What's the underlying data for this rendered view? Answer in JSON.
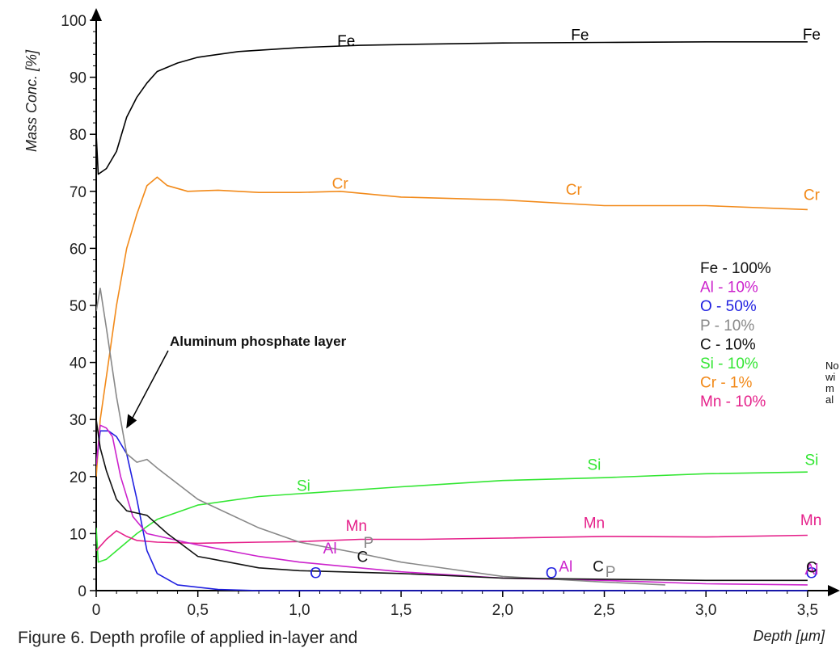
{
  "chart_data": {
    "type": "line",
    "xlabel": "Depth [µm]",
    "ylabel": "Mass Conc. [%]",
    "xlim": [
      0,
      3.6
    ],
    "ylim": [
      0,
      100
    ],
    "x_ticks": [
      "0",
      "0,5",
      "1,0",
      "1,5",
      "2,0",
      "2,5",
      "3,0",
      "3,5"
    ],
    "y_ticks": [
      "0",
      "10",
      "20",
      "30",
      "40",
      "50",
      "60",
      "70",
      "80",
      "90",
      "100"
    ],
    "series": [
      {
        "name": "Fe",
        "color": "#000000",
        "points": [
          [
            0,
            80
          ],
          [
            0.01,
            73
          ],
          [
            0.05,
            74
          ],
          [
            0.1,
            77
          ],
          [
            0.15,
            83
          ],
          [
            0.2,
            86.5
          ],
          [
            0.25,
            89
          ],
          [
            0.3,
            91
          ],
          [
            0.4,
            92.5
          ],
          [
            0.5,
            93.5
          ],
          [
            0.7,
            94.5
          ],
          [
            1.0,
            95.2
          ],
          [
            1.3,
            95.6
          ],
          [
            1.6,
            95.8
          ],
          [
            2.0,
            96
          ],
          [
            2.5,
            96.1
          ],
          [
            3.0,
            96.2
          ],
          [
            3.5,
            96.2
          ]
        ],
        "labels": [
          [
            1.23,
            95.5
          ],
          [
            2.38,
            96.5
          ],
          [
            3.52,
            96.6
          ]
        ]
      },
      {
        "name": "Cr",
        "color": "#f28a1a",
        "points": [
          [
            0,
            20
          ],
          [
            0.02,
            30
          ],
          [
            0.06,
            40
          ],
          [
            0.1,
            50
          ],
          [
            0.15,
            60
          ],
          [
            0.2,
            66
          ],
          [
            0.25,
            71
          ],
          [
            0.3,
            72.5
          ],
          [
            0.35,
            71
          ],
          [
            0.45,
            70
          ],
          [
            0.6,
            70.2
          ],
          [
            0.8,
            69.8
          ],
          [
            1.0,
            69.8
          ],
          [
            1.2,
            70
          ],
          [
            1.5,
            69
          ],
          [
            2.0,
            68.5
          ],
          [
            2.5,
            67.5
          ],
          [
            3.0,
            67.5
          ],
          [
            3.5,
            66.8
          ]
        ],
        "labels": [
          [
            1.2,
            70.5
          ],
          [
            2.35,
            69.4
          ],
          [
            3.52,
            68.5
          ]
        ]
      },
      {
        "name": "Si",
        "color": "#33e633",
        "points": [
          [
            0,
            11
          ],
          [
            0.01,
            5
          ],
          [
            0.05,
            5.5
          ],
          [
            0.1,
            7
          ],
          [
            0.2,
            10
          ],
          [
            0.3,
            12.5
          ],
          [
            0.5,
            15
          ],
          [
            0.8,
            16.5
          ],
          [
            1.0,
            17
          ],
          [
            1.5,
            18.2
          ],
          [
            2.0,
            19.3
          ],
          [
            2.5,
            19.8
          ],
          [
            3.0,
            20.5
          ],
          [
            3.5,
            20.8
          ]
        ],
        "labels": [
          [
            1.02,
            17.5
          ],
          [
            2.45,
            21.2
          ],
          [
            3.52,
            22
          ]
        ]
      },
      {
        "name": "Mn",
        "color": "#e5208a",
        "points": [
          [
            0,
            7
          ],
          [
            0.05,
            9
          ],
          [
            0.1,
            10.5
          ],
          [
            0.15,
            9.5
          ],
          [
            0.2,
            8.8
          ],
          [
            0.3,
            8.5
          ],
          [
            0.5,
            8.3
          ],
          [
            0.8,
            8.5
          ],
          [
            1.0,
            8.6
          ],
          [
            1.3,
            9
          ],
          [
            1.6,
            9
          ],
          [
            2.0,
            9.2
          ],
          [
            2.5,
            9.5
          ],
          [
            3.0,
            9.4
          ],
          [
            3.5,
            9.7
          ]
        ],
        "labels": [
          [
            1.28,
            10.5
          ],
          [
            2.45,
            11
          ]
        ],
        "clipped_labels": [
          [
            3.52,
            11.5
          ]
        ]
      },
      {
        "name": "O",
        "color": "#1f1fe0",
        "points": [
          [
            0,
            22
          ],
          [
            0.02,
            28
          ],
          [
            0.06,
            28
          ],
          [
            0.1,
            27
          ],
          [
            0.15,
            24
          ],
          [
            0.2,
            16
          ],
          [
            0.25,
            7
          ],
          [
            0.3,
            3
          ],
          [
            0.4,
            1
          ],
          [
            0.6,
            0.2
          ],
          [
            0.8,
            0
          ],
          [
            3.5,
            0
          ]
        ],
        "labels": [
          [
            1.08,
            2.2
          ],
          [
            2.24,
            2.2
          ],
          [
            3.52,
            2.2
          ]
        ]
      },
      {
        "name": "Al",
        "color": "#cc22cc",
        "points": [
          [
            0,
            22
          ],
          [
            0.02,
            29
          ],
          [
            0.05,
            28.5
          ],
          [
            0.08,
            27
          ],
          [
            0.12,
            20
          ],
          [
            0.18,
            13
          ],
          [
            0.25,
            10
          ],
          [
            0.5,
            8
          ],
          [
            0.8,
            6
          ],
          [
            1.0,
            5
          ],
          [
            1.5,
            3.3
          ],
          [
            2.0,
            2.2
          ],
          [
            2.5,
            1.8
          ],
          [
            3.0,
            1.2
          ],
          [
            3.5,
            1
          ]
        ],
        "labels": [
          [
            1.15,
            6.5
          ],
          [
            2.31,
            3.3
          ],
          [
            3.52,
            2.8
          ]
        ]
      },
      {
        "name": "P",
        "color": "#888888",
        "points": [
          [
            0,
            49
          ],
          [
            0.02,
            53
          ],
          [
            0.05,
            46
          ],
          [
            0.1,
            34
          ],
          [
            0.15,
            24
          ],
          [
            0.2,
            22.5
          ],
          [
            0.25,
            23
          ],
          [
            0.3,
            21.5
          ],
          [
            0.5,
            16
          ],
          [
            0.8,
            11
          ],
          [
            1.0,
            8.5
          ],
          [
            1.3,
            6.5
          ],
          [
            1.5,
            5
          ],
          [
            2.0,
            2.5
          ],
          [
            2.5,
            1.5
          ],
          [
            2.8,
            1
          ]
        ],
        "labels": [
          [
            1.34,
            7.5
          ],
          [
            2.53,
            2.4
          ]
        ]
      },
      {
        "name": "C",
        "color": "#111111",
        "points": [
          [
            0,
            30
          ],
          [
            0.02,
            25
          ],
          [
            0.05,
            21
          ],
          [
            0.1,
            16
          ],
          [
            0.15,
            14
          ],
          [
            0.2,
            13.6
          ],
          [
            0.25,
            13.2
          ],
          [
            0.35,
            10
          ],
          [
            0.5,
            6
          ],
          [
            0.8,
            4
          ],
          [
            1.0,
            3.5
          ],
          [
            1.5,
            3
          ],
          [
            2.0,
            2.2
          ],
          [
            2.5,
            2
          ],
          [
            3.0,
            1.8
          ],
          [
            3.5,
            1.8
          ]
        ],
        "labels": [
          [
            1.31,
            5
          ],
          [
            2.47,
            3.3
          ],
          [
            3.52,
            3.2
          ]
        ]
      }
    ],
    "legend": {
      "position": "right",
      "entries": [
        {
          "text": "Fe - 100%",
          "color": "#111111"
        },
        {
          "text": "Al - 10%",
          "color": "#cc22cc"
        },
        {
          "text": "O - 50%",
          "color": "#1f1fe0"
        },
        {
          "text": "P - 10%",
          "color": "#888888"
        },
        {
          "text": "C - 10%",
          "color": "#111111"
        },
        {
          "text": "Si - 10%",
          "color": "#33e633"
        },
        {
          "text": "Cr - 1%",
          "color": "#f28a1a"
        },
        {
          "text": "Mn - 10%",
          "color": "#e5208a"
        }
      ]
    },
    "annotation": {
      "text": "Aluminum phosphate layer",
      "arrow_to": [
        0.14,
        27
      ]
    },
    "grid": false
  },
  "side_note": [
    "No",
    "wi",
    "m",
    "al"
  ],
  "caption": "Figure 6. Depth profile of applied in-layer and"
}
